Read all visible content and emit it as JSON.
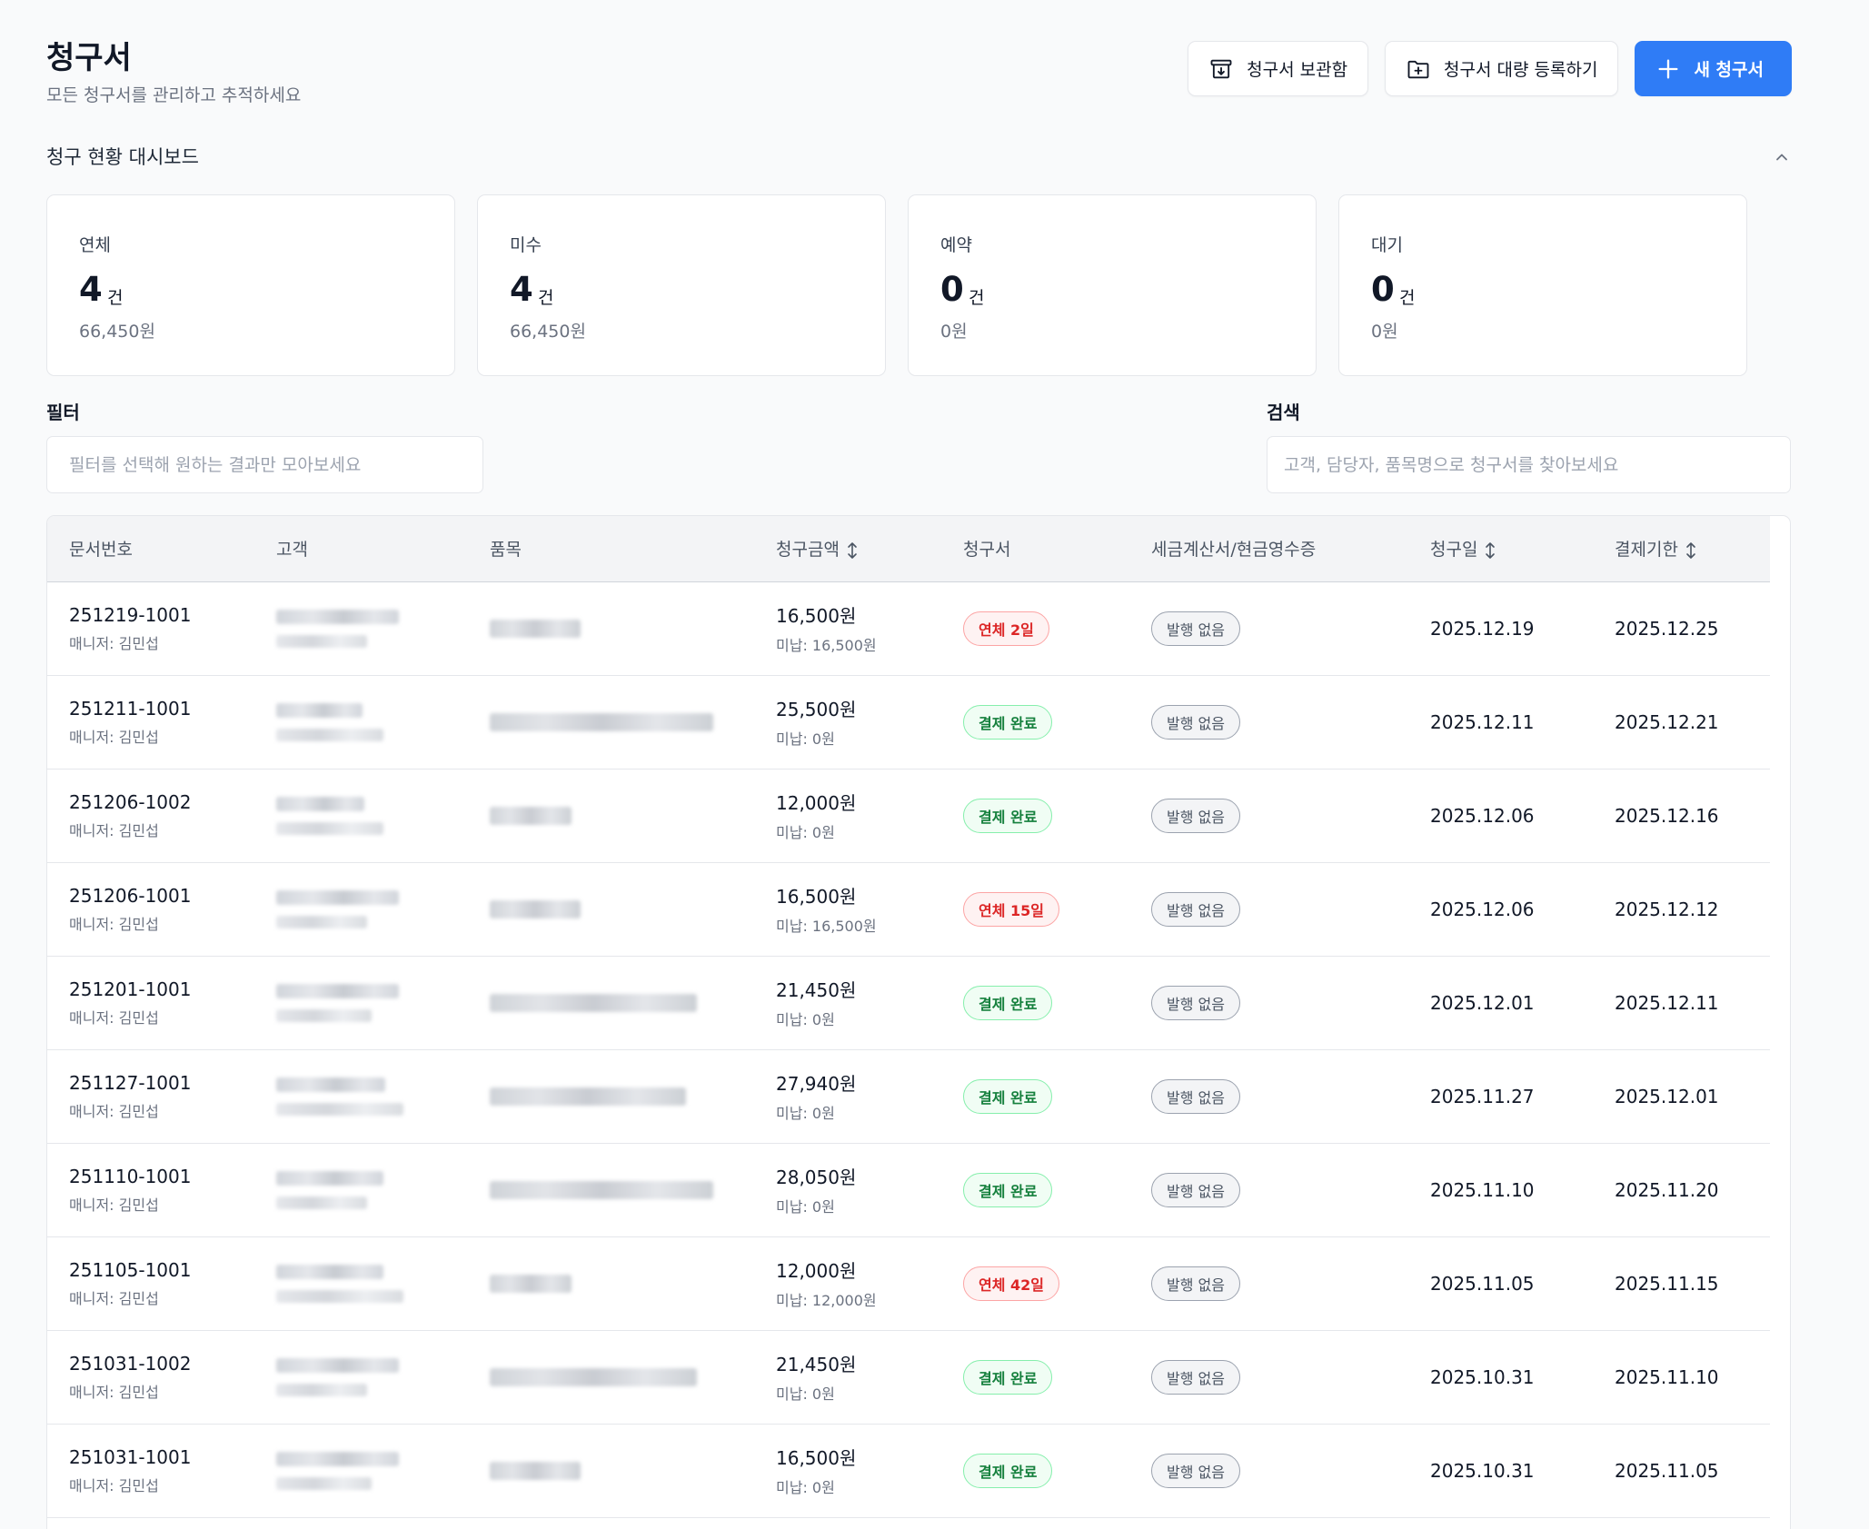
{
  "header": {
    "title": "청구서",
    "subtitle": "모든 청구서를 관리하고 추적하세요",
    "archive_label": "청구서 보관함",
    "bulk_label": "청구서 대량 등록하기",
    "new_label": "새 청구서"
  },
  "dashboard": {
    "title": "청구 현황 대시보드",
    "cards": [
      {
        "label": "연체",
        "count": "4",
        "unit": "건",
        "amount": "66,450원"
      },
      {
        "label": "미수",
        "count": "4",
        "unit": "건",
        "amount": "66,450원"
      },
      {
        "label": "예약",
        "count": "0",
        "unit": "건",
        "amount": "0원"
      },
      {
        "label": "대기",
        "count": "0",
        "unit": "건",
        "amount": "0원"
      }
    ]
  },
  "filter": {
    "label": "필터",
    "placeholder": "필터를 선택해 원하는 결과만 모아보세요"
  },
  "search": {
    "label": "검색",
    "placeholder": "고객, 담당자, 품목명으로 청구서를 찾아보세요"
  },
  "table": {
    "columns": [
      "문서번호",
      "고객",
      "품목",
      "청구금액",
      "청구서",
      "세금계산서/현금영수증",
      "청구일",
      "결제기한"
    ],
    "rows": [
      {
        "doc_no": "251219-1001",
        "manager": "매니저: 김민섭",
        "amount": "16,500원",
        "unpaid": "미납: 16,500원",
        "status": "연체 2일",
        "status_type": "overdue",
        "tax": "발행 없음",
        "billed": "2025.12.19",
        "due": "2025.12.25"
      },
      {
        "doc_no": "251211-1001",
        "manager": "매니저: 김민섭",
        "amount": "25,500원",
        "unpaid": "미납: 0원",
        "status": "결제 완료",
        "status_type": "paid",
        "tax": "발행 없음",
        "billed": "2025.12.11",
        "due": "2025.12.21"
      },
      {
        "doc_no": "251206-1002",
        "manager": "매니저: 김민섭",
        "amount": "12,000원",
        "unpaid": "미납: 0원",
        "status": "결제 완료",
        "status_type": "paid",
        "tax": "발행 없음",
        "billed": "2025.12.06",
        "due": "2025.12.16"
      },
      {
        "doc_no": "251206-1001",
        "manager": "매니저: 김민섭",
        "amount": "16,500원",
        "unpaid": "미납: 16,500원",
        "status": "연체 15일",
        "status_type": "overdue",
        "tax": "발행 없음",
        "billed": "2025.12.06",
        "due": "2025.12.12"
      },
      {
        "doc_no": "251201-1001",
        "manager": "매니저: 김민섭",
        "amount": "21,450원",
        "unpaid": "미납: 0원",
        "status": "결제 완료",
        "status_type": "paid",
        "tax": "발행 없음",
        "billed": "2025.12.01",
        "due": "2025.12.11"
      },
      {
        "doc_no": "251127-1001",
        "manager": "매니저: 김민섭",
        "amount": "27,940원",
        "unpaid": "미납: 0원",
        "status": "결제 완료",
        "status_type": "paid",
        "tax": "발행 없음",
        "billed": "2025.11.27",
        "due": "2025.12.01"
      },
      {
        "doc_no": "251110-1001",
        "manager": "매니저: 김민섭",
        "amount": "28,050원",
        "unpaid": "미납: 0원",
        "status": "결제 완료",
        "status_type": "paid",
        "tax": "발행 없음",
        "billed": "2025.11.10",
        "due": "2025.11.20"
      },
      {
        "doc_no": "251105-1001",
        "manager": "매니저: 김민섭",
        "amount": "12,000원",
        "unpaid": "미납: 12,000원",
        "status": "연체 42일",
        "status_type": "overdue",
        "tax": "발행 없음",
        "billed": "2025.11.05",
        "due": "2025.11.15"
      },
      {
        "doc_no": "251031-1002",
        "manager": "매니저: 김민섭",
        "amount": "21,450원",
        "unpaid": "미납: 0원",
        "status": "결제 완료",
        "status_type": "paid",
        "tax": "발행 없음",
        "billed": "2025.10.31",
        "due": "2025.11.10"
      },
      {
        "doc_no": "251031-1001",
        "manager": "매니저: 김민섭",
        "amount": "16,500원",
        "unpaid": "미납: 0원",
        "status": "결제 완료",
        "status_type": "paid",
        "tax": "발행 없음",
        "billed": "2025.10.31",
        "due": "2025.11.05"
      }
    ]
  },
  "colors": {
    "primary": "#2f7cf6",
    "overdue": "#dc2626",
    "paid": "#15803d"
  },
  "icons": {
    "archive": "archive-box-icon",
    "bulk": "folder-plus-icon",
    "new": "plus-icon",
    "collapse": "chevron-up-icon",
    "sort": "sort-arrows-icon"
  }
}
